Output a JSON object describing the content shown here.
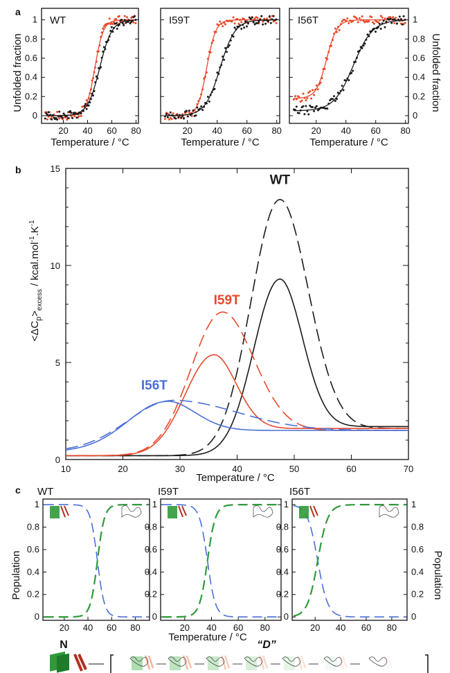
{
  "panel_letters": {
    "a": "a",
    "b": "b",
    "c": "c"
  },
  "colors": {
    "black": "#1a1a1a",
    "red": "#e8482a",
    "blue": "#4a6fd6",
    "green": "#2f9a3a"
  },
  "chart_data": [
    {
      "type": "scatter",
      "panel": "a",
      "xlabel": "Temperature / °C",
      "ylabel_left": "Unfolded fraction",
      "ylabel_right": "Unfolded fraction",
      "xlim": [
        2,
        82
      ],
      "ylim": [
        -0.08,
        1.12
      ],
      "xticks": [
        20,
        40,
        60,
        80
      ],
      "yticks": [
        0,
        0.2,
        0.4,
        0.6,
        0.8,
        1
      ],
      "subplots": [
        {
          "label": "WT",
          "series": [
            {
              "color": "red",
              "midpoint": 46,
              "width": 3.5,
              "baseline": 0.0
            },
            {
              "color": "black",
              "midpoint": 50,
              "width": 5.0,
              "baseline": 0.0
            }
          ]
        },
        {
          "label": "I59T",
          "series": [
            {
              "color": "red",
              "midpoint": 33,
              "width": 3.0,
              "baseline": 0.0
            },
            {
              "color": "black",
              "midpoint": 42,
              "width": 5.0,
              "baseline": 0.0
            }
          ]
        },
        {
          "label": "I56T",
          "series": [
            {
              "color": "red",
              "midpoint": 27,
              "width": 3.5,
              "baseline": 0.18
            },
            {
              "color": "black",
              "midpoint": 45,
              "width": 6.5,
              "baseline": 0.05
            }
          ]
        }
      ]
    },
    {
      "type": "line",
      "panel": "b",
      "xlabel": "Temperature / °C",
      "ylabel": "<ΔCp>excess / kcal.mol-1.K-1",
      "ylabel_parts": {
        "lt": "<ΔC",
        "p": "p",
        "gt": ">",
        "excess": "excess",
        "unit": " / kcal.mol",
        "exp1": "-1",
        "unit2": ".K",
        "exp2": "-1"
      },
      "xlim": [
        10,
        70
      ],
      "ylim": [
        0,
        15
      ],
      "xticks": [
        10,
        20,
        30,
        40,
        50,
        60,
        70
      ],
      "yticks": [
        0,
        5,
        10,
        15
      ],
      "series": [
        {
          "name": "WT",
          "color": "black",
          "style": "solid",
          "peak_x": 47.5,
          "peak_y": 9.3,
          "sigma_left": 4.5,
          "sigma_right": 4.0,
          "base_low": 0.2,
          "base_high": 1.7
        },
        {
          "name": "WT",
          "color": "black",
          "style": "dashed",
          "peak_x": 47.5,
          "peak_y": 13.4,
          "sigma_left": 5.0,
          "sigma_right": 5.0,
          "base_low": 0.2,
          "base_high": 1.6
        },
        {
          "name": "I59T",
          "color": "red",
          "style": "solid",
          "peak_x": 36,
          "peak_y": 5.4,
          "sigma_left": 5.0,
          "sigma_right": 4.0,
          "base_low": 0.2,
          "base_high": 1.6
        },
        {
          "name": "I59T",
          "color": "red",
          "style": "dashed",
          "peak_x": 37.5,
          "peak_y": 7.6,
          "sigma_left": 5.5,
          "sigma_right": 5.5,
          "base_low": 0.2,
          "base_high": 1.5
        },
        {
          "name": "I56T",
          "color": "blue",
          "style": "solid",
          "peak_x": 28,
          "peak_y": 3.0,
          "sigma_left": 7.0,
          "sigma_right": 5.0,
          "base_low": 0.4,
          "base_high": 1.5
        },
        {
          "name": "I56T",
          "color": "blue",
          "style": "dashed",
          "peak_x": 29,
          "peak_y": 3.05,
          "sigma_left": 8.0,
          "sigma_right": 11.0,
          "base_low": 0.4,
          "base_high": 1.5
        }
      ],
      "labels": [
        "WT",
        "I59T",
        "I56T"
      ]
    },
    {
      "type": "line",
      "panel": "c",
      "xlabel": "Temperature / °C",
      "ylabel_left": "Population",
      "ylabel_right": "Population",
      "xlim": [
        2,
        92
      ],
      "ylim": [
        -0.03,
        1.05
      ],
      "xticks": [
        20,
        40,
        60,
        80
      ],
      "yticks": [
        0,
        0.2,
        0.4,
        0.6,
        0.8,
        1
      ],
      "subplots": [
        {
          "label": "WT",
          "midpoint": 48,
          "width": 3.0
        },
        {
          "label": "I59T",
          "midpoint": 37,
          "width": 3.0
        },
        {
          "label": "I56T",
          "midpoint": 22,
          "width": 4.0
        }
      ]
    }
  ],
  "scheme": {
    "native_label": "N",
    "denatured_label": "“D”"
  }
}
